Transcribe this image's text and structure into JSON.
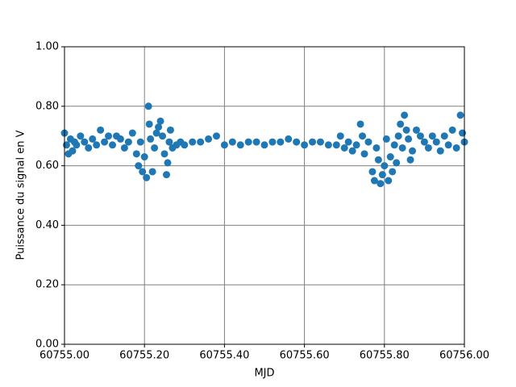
{
  "chart_data": {
    "type": "scatter",
    "xlabel": "MJD",
    "ylabel": "Puissance du signal en V",
    "x": [
      60755.0,
      60755.005,
      60755.01,
      60755.015,
      60755.02,
      60755.025,
      60755.03,
      60755.04,
      60755.05,
      60755.06,
      60755.07,
      60755.08,
      60755.09,
      60755.1,
      60755.11,
      60755.12,
      60755.13,
      60755.14,
      60755.15,
      60755.16,
      60755.17,
      60755.18,
      60755.185,
      60755.19,
      60755.195,
      60755.2,
      60755.205,
      60755.21,
      60755.212,
      60755.215,
      60755.22,
      60755.225,
      60755.23,
      60755.235,
      60755.24,
      60755.245,
      60755.25,
      60755.255,
      60755.258,
      60755.262,
      60755.265,
      60755.27,
      60755.28,
      60755.29,
      60755.3,
      60755.32,
      60755.34,
      60755.36,
      60755.38,
      60755.4,
      60755.42,
      60755.44,
      60755.46,
      60755.48,
      60755.5,
      60755.52,
      60755.54,
      60755.56,
      60755.58,
      60755.6,
      60755.62,
      60755.64,
      60755.66,
      60755.68,
      60755.69,
      60755.7,
      60755.71,
      60755.72,
      60755.73,
      60755.74,
      60755.745,
      60755.75,
      60755.76,
      60755.77,
      60755.775,
      60755.78,
      60755.785,
      60755.79,
      60755.795,
      60755.8,
      60755.805,
      60755.81,
      60755.815,
      60755.82,
      60755.825,
      60755.83,
      60755.835,
      60755.84,
      60755.845,
      60755.85,
      60755.855,
      60755.86,
      60755.865,
      60755.87,
      60755.88,
      60755.89,
      60755.9,
      60755.91,
      60755.92,
      60755.93,
      60755.94,
      60755.95,
      60755.96,
      60755.97,
      60755.98,
      60755.99,
      60755.995,
      60756.0
    ],
    "values": [
      0.71,
      0.67,
      0.64,
      0.69,
      0.65,
      0.68,
      0.67,
      0.7,
      0.68,
      0.66,
      0.69,
      0.67,
      0.72,
      0.68,
      0.7,
      0.67,
      0.7,
      0.69,
      0.66,
      0.68,
      0.71,
      0.64,
      0.6,
      0.68,
      0.58,
      0.63,
      0.56,
      0.8,
      0.74,
      0.69,
      0.58,
      0.66,
      0.71,
      0.73,
      0.75,
      0.7,
      0.64,
      0.57,
      0.61,
      0.68,
      0.72,
      0.66,
      0.67,
      0.68,
      0.67,
      0.68,
      0.68,
      0.69,
      0.7,
      0.67,
      0.68,
      0.67,
      0.68,
      0.68,
      0.67,
      0.68,
      0.68,
      0.69,
      0.68,
      0.67,
      0.68,
      0.68,
      0.67,
      0.67,
      0.7,
      0.66,
      0.68,
      0.65,
      0.67,
      0.74,
      0.7,
      0.64,
      0.68,
      0.58,
      0.55,
      0.66,
      0.62,
      0.54,
      0.57,
      0.6,
      0.69,
      0.55,
      0.63,
      0.58,
      0.67,
      0.61,
      0.7,
      0.74,
      0.66,
      0.77,
      0.72,
      0.69,
      0.62,
      0.65,
      0.72,
      0.7,
      0.68,
      0.66,
      0.7,
      0.68,
      0.65,
      0.7,
      0.67,
      0.72,
      0.66,
      0.77,
      0.71,
      0.68
    ],
    "color": "#1f77b4",
    "xlim": [
      60755.0,
      60756.0
    ],
    "xticks": [
      {
        "value": 60755.0,
        "label": "60755.00"
      },
      {
        "value": 60755.2,
        "label": "60755.20"
      },
      {
        "value": 60755.4,
        "label": "60755.40"
      },
      {
        "value": 60755.6,
        "label": "60755.60"
      },
      {
        "value": 60755.8,
        "label": "60755.80"
      },
      {
        "value": 60756.0,
        "label": "60756.00"
      }
    ],
    "ylim": [
      0,
      1
    ],
    "yticks": [
      {
        "value": 0,
        "label": "0.00"
      },
      {
        "value": 0.2,
        "label": "0.20"
      },
      {
        "value": 0.4,
        "label": "0.40"
      },
      {
        "value": 0.6,
        "label": "0.60"
      },
      {
        "value": 0.8,
        "label": "0.80"
      },
      {
        "value": 1,
        "label": "1.00"
      }
    ],
    "grid": true,
    "grid_color": "#808080"
  }
}
